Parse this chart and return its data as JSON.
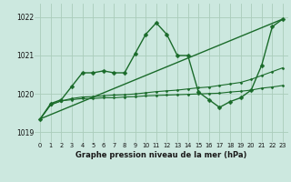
{
  "bg_color": "#cce8df",
  "grid_color": "#aaccbb",
  "line_color": "#1a6b2a",
  "ylabel_ticks": [
    1019,
    1020,
    1021,
    1022
  ],
  "xlabel_label": "Graphe pression niveau de la mer (hPa)",
  "xlim": [
    -0.5,
    23.5
  ],
  "ylim": [
    1018.75,
    1022.35
  ],
  "series": [
    {
      "x": [
        0,
        1,
        2,
        3,
        4,
        5,
        6,
        7,
        8,
        9,
        10,
        11,
        12,
        13,
        14,
        15,
        16,
        17,
        18,
        19,
        20,
        21,
        22,
        23
      ],
      "y": [
        1019.35,
        1019.75,
        1019.85,
        1020.2,
        1020.55,
        1020.55,
        1020.6,
        1020.55,
        1020.55,
        1021.05,
        1021.55,
        1021.85,
        1021.55,
        1021.0,
        1021.0,
        1020.05,
        1019.85,
        1019.65,
        1019.8,
        1019.9,
        1020.1,
        1020.75,
        1021.75,
        1021.95
      ],
      "marker": "D",
      "markersize": 2.5,
      "linewidth": 1.0
    },
    {
      "x": [
        0,
        23
      ],
      "y": [
        1019.35,
        1021.95
      ],
      "marker": "None",
      "markersize": 0,
      "linewidth": 1.0
    },
    {
      "x": [
        0,
        1,
        2,
        3,
        4,
        5,
        6,
        7,
        8,
        9,
        10,
        11,
        12,
        13,
        14,
        15,
        16,
        17,
        18,
        19,
        20,
        21,
        22,
        23
      ],
      "y": [
        1019.35,
        1019.72,
        1019.82,
        1019.85,
        1019.88,
        1019.88,
        1019.9,
        1019.9,
        1019.92,
        1019.93,
        1019.95,
        1019.96,
        1019.97,
        1019.98,
        1019.99,
        1020.0,
        1020.01,
        1020.02,
        1020.05,
        1020.07,
        1020.1,
        1020.15,
        1020.18,
        1020.22
      ],
      "marker": "D",
      "markersize": 1.5,
      "linewidth": 0.8
    },
    {
      "x": [
        0,
        1,
        2,
        3,
        4,
        5,
        6,
        7,
        8,
        9,
        10,
        11,
        12,
        13,
        14,
        15,
        16,
        17,
        18,
        19,
        20,
        21,
        22,
        23
      ],
      "y": [
        1019.35,
        1019.72,
        1019.82,
        1019.88,
        1019.92,
        1019.93,
        1019.95,
        1019.97,
        1019.98,
        1020.0,
        1020.03,
        1020.06,
        1020.08,
        1020.1,
        1020.13,
        1020.16,
        1020.18,
        1020.22,
        1020.26,
        1020.3,
        1020.38,
        1020.48,
        1020.58,
        1020.68
      ],
      "marker": "D",
      "markersize": 1.5,
      "linewidth": 0.8
    }
  ]
}
